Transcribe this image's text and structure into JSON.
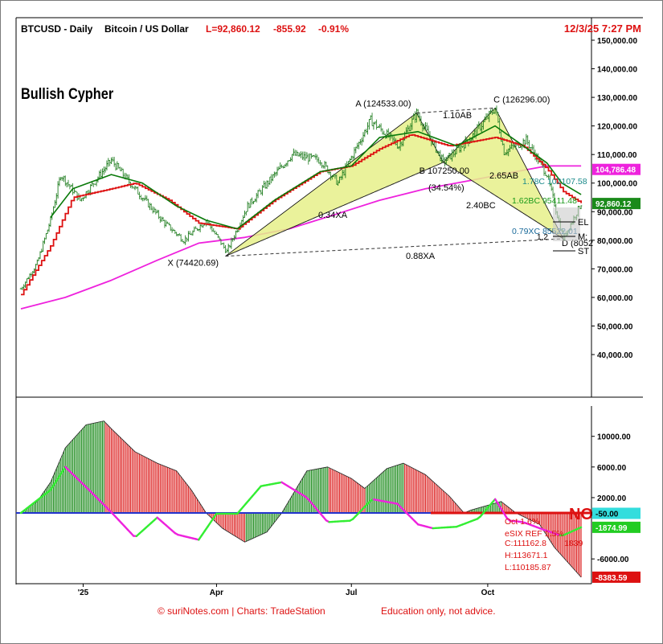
{
  "header": {
    "symbol": "BTCUSD - Daily",
    "name": "Bitcoin / US Dollar",
    "last": "L=92,860.12",
    "change": "-855.92",
    "pct": "-0.91%",
    "datetime": "12/3/25 7:27 PM"
  },
  "pattern_title": "Bullish Cypher",
  "footer": {
    "credit": "© suriNotes.com |  Charts: TradeStation",
    "disclaimer": "Education only, not advice."
  },
  "colors": {
    "up": "#1a7a1a",
    "down": "#cc1111",
    "sma_red": "#dd1111",
    "sma_green": "#0a7a0a",
    "sma_magenta": "#ee22dd",
    "triangle": "#e6f08a",
    "osc_line_green": "#33ee33",
    "osc_line_magenta": "#ee22dd",
    "zero_line": "#2233cc"
  },
  "chart_data": [
    {
      "type": "candlestick",
      "title": "BTCUSD - Daily  Bitcoin / US Dollar",
      "y_axis": {
        "range": [
          30000,
          155000
        ],
        "ticks": [
          40000,
          50000,
          60000,
          70000,
          80000,
          90000,
          100000,
          110000,
          120000,
          130000,
          140000,
          150000
        ],
        "tick_labels": [
          "40,000.00",
          "50,000.00",
          "60,000.00",
          "70,000.00",
          "80,000.00",
          "90,000.00",
          "100,000.00",
          "110,000.00",
          "120,000.00",
          "130,000.00",
          "140,000.00",
          "150,000.00"
        ]
      },
      "x_axis": {
        "range": [
          "2024-11-20",
          "2025-12-10"
        ],
        "ticks": [
          "2025-01-01",
          "2025-04-01",
          "2025-07-01",
          "2025-10-01"
        ],
        "tick_labels": [
          "'25",
          "Apr",
          "Jul",
          "Oct"
        ]
      },
      "price_path": [
        [
          "2024-11-20",
          63000
        ],
        [
          "2024-12-01",
          72000
        ],
        [
          "2024-12-10",
          87000
        ],
        [
          "2024-12-17",
          103000
        ],
        [
          "2024-12-30",
          94000
        ],
        [
          "2025-01-20",
          108000
        ],
        [
          "2025-02-05",
          98000
        ],
        [
          "2025-02-25",
          86000
        ],
        [
          "2025-03-10",
          80000
        ],
        [
          "2025-03-25",
          87000
        ],
        [
          "2025-04-08",
          76000
        ],
        [
          "2025-04-22",
          92000
        ],
        [
          "2025-05-22",
          110000
        ],
        [
          "2025-06-10",
          108000
        ],
        [
          "2025-06-22",
          100000
        ],
        [
          "2025-07-14",
          122000
        ],
        [
          "2025-08-02",
          113000
        ],
        [
          "2025-08-14",
          124533
        ],
        [
          "2025-09-01",
          107250
        ],
        [
          "2025-09-20",
          116000
        ],
        [
          "2025-10-06",
          126296
        ],
        [
          "2025-10-12",
          111000
        ],
        [
          "2025-10-27",
          115000
        ],
        [
          "2025-11-10",
          103000
        ],
        [
          "2025-11-21",
          80524
        ],
        [
          "2025-12-03",
          92860
        ]
      ],
      "moving_averages": [
        {
          "color": "red",
          "points": [
            [
              "2024-11-20",
              61000
            ],
            [
              "2024-12-10",
              78000
            ],
            [
              "2024-12-25",
              95000
            ],
            [
              "2025-01-20",
              98000
            ],
            [
              "2025-02-05",
              100000
            ],
            [
              "2025-02-28",
              94000
            ],
            [
              "2025-03-20",
              86000
            ],
            [
              "2025-04-15",
              84000
            ],
            [
              "2025-05-10",
              94000
            ],
            [
              "2025-06-10",
              104000
            ],
            [
              "2025-07-01",
              106000
            ],
            [
              "2025-07-20",
              112000
            ],
            [
              "2025-08-10",
              117000
            ],
            [
              "2025-09-05",
              113000
            ],
            [
              "2025-10-06",
              116000
            ],
            [
              "2025-10-25",
              113000
            ],
            [
              "2025-11-10",
              105000
            ],
            [
              "2025-11-21",
              97000
            ],
            [
              "2025-12-03",
              93000
            ]
          ]
        },
        {
          "color": "green",
          "points": [
            [
              "2024-12-10",
              88000
            ],
            [
              "2024-12-25",
              98000
            ],
            [
              "2025-01-20",
              103000
            ],
            [
              "2025-02-10",
              100000
            ],
            [
              "2025-03-05",
              92000
            ],
            [
              "2025-03-25",
              87000
            ],
            [
              "2025-04-15",
              84000
            ],
            [
              "2025-05-10",
              94000
            ],
            [
              "2025-06-10",
              104000
            ],
            [
              "2025-07-01",
              106000
            ],
            [
              "2025-07-20",
              116000
            ],
            [
              "2025-08-15",
              118000
            ],
            [
              "2025-09-10",
              113000
            ],
            [
              "2025-10-06",
              120000
            ],
            [
              "2025-10-25",
              113000
            ],
            [
              "2025-11-10",
              107000
            ],
            [
              "2025-11-20",
              100000
            ],
            [
              "2025-12-03",
              96000
            ]
          ]
        },
        {
          "color": "magenta",
          "points": [
            [
              "2024-11-20",
              56000
            ],
            [
              "2024-12-20",
              60000
            ],
            [
              "2025-01-20",
              66000
            ],
            [
              "2025-02-20",
              73000
            ],
            [
              "2025-03-20",
              79000
            ],
            [
              "2025-04-20",
              81000
            ],
            [
              "2025-05-20",
              84000
            ],
            [
              "2025-06-20",
              89000
            ],
            [
              "2025-07-20",
              94000
            ],
            [
              "2025-08-20",
              98000
            ],
            [
              "2025-09-20",
              101000
            ],
            [
              "2025-10-20",
              104000
            ],
            [
              "2025-11-10",
              106000
            ],
            [
              "2025-12-03",
              106000
            ]
          ]
        }
      ],
      "harmonic_pattern": {
        "name": "Bullish Cypher",
        "points": [
          {
            "id": "X",
            "date": "2025-04-07",
            "price": 74420.69,
            "label": "X (74420.69)"
          },
          {
            "id": "A",
            "date": "2025-08-14",
            "price": 124533.0,
            "label": "A (124533.00)"
          },
          {
            "id": "B",
            "date": "2025-09-01",
            "price": 107250.0,
            "label": "B 107250.00"
          },
          {
            "id": "C",
            "date": "2025-10-06",
            "price": 126296.0,
            "label": "C (126296.00)"
          },
          {
            "id": "D",
            "date": "2025-11-21",
            "price": 80524,
            "label": "D (8052"
          }
        ],
        "ratio_labels": [
          "1.10AB",
          "(34.54%)",
          "0.34XA",
          "2.40BC",
          "2.65AB",
          "0.88XA"
        ],
        "projection_labels": [
          "1.78C 102107.58",
          "1.62BC 95411.48",
          "0.79XC 85522.01",
          "1.2"
        ],
        "trade_labels": [
          "EL",
          "M:",
          "ST"
        ]
      },
      "price_tags": [
        {
          "value": 104786.48,
          "label": "104,786.48",
          "color": "#ee22dd"
        },
        {
          "value": 92860.12,
          "label": "92,860.12",
          "color": "#1a8a1a"
        }
      ]
    },
    {
      "type": "histogram",
      "y_axis": {
        "ticks": [
          -6000,
          2000,
          6000,
          10000
        ],
        "tick_labels": [
          "-6000.00",
          "2000.00",
          "6000.00",
          "10000.00"
        ]
      },
      "histogram_path": [
        [
          "2024-11-20",
          0
        ],
        [
          "2024-12-01",
          1500
        ],
        [
          "2024-12-10",
          4000
        ],
        [
          "2024-12-20",
          8500
        ],
        [
          "2025-01-03",
          11500
        ],
        [
          "2025-01-15",
          12000
        ],
        [
          "2025-01-20",
          11000
        ],
        [
          "2025-02-05",
          8000
        ],
        [
          "2025-02-20",
          6500
        ],
        [
          "2025-03-05",
          5500
        ],
        [
          "2025-03-15",
          3000
        ],
        [
          "2025-03-25",
          0
        ],
        [
          "2025-04-05",
          -2000
        ],
        [
          "2025-04-20",
          -3800
        ],
        [
          "2025-05-05",
          -2500
        ],
        [
          "2025-05-15",
          0
        ],
        [
          "2025-06-01",
          5500
        ],
        [
          "2025-06-15",
          6000
        ],
        [
          "2025-07-01",
          4500
        ],
        [
          "2025-07-10",
          3200
        ],
        [
          "2025-07-25",
          5800
        ],
        [
          "2025-08-05",
          6500
        ],
        [
          "2025-08-20",
          5000
        ],
        [
          "2025-09-05",
          2200
        ],
        [
          "2025-09-15",
          0
        ],
        [
          "2025-09-20",
          400
        ],
        [
          "2025-10-01",
          1000
        ],
        [
          "2025-10-10",
          1500
        ],
        [
          "2025-10-20",
          0
        ],
        [
          "2025-11-05",
          -1500
        ],
        [
          "2025-11-15",
          -4500
        ],
        [
          "2025-12-03",
          -8384
        ]
      ],
      "lines": [
        {
          "color": "green/magenta",
          "points": [
            [
              "2024-11-20",
              0
            ],
            [
              "2024-12-10",
              3000
            ],
            [
              "2024-12-20",
              6000
            ],
            [
              "2025-01-05",
              3000
            ],
            [
              "2025-01-20",
              100
            ],
            [
              "2025-02-05",
              -3200
            ],
            [
              "2025-02-20",
              -600
            ],
            [
              "2025-03-05",
              -2800
            ],
            [
              "2025-03-20",
              -3500
            ],
            [
              "2025-04-01",
              -100
            ],
            [
              "2025-04-15",
              -100
            ],
            [
              "2025-05-01",
              3500
            ],
            [
              "2025-05-15",
              4000
            ],
            [
              "2025-06-01",
              2000
            ],
            [
              "2025-06-15",
              -1200
            ],
            [
              "2025-07-01",
              -1000
            ],
            [
              "2025-07-15",
              1800
            ],
            [
              "2025-08-01",
              1200
            ],
            [
              "2025-08-15",
              -1500
            ],
            [
              "2025-08-25",
              -2000
            ],
            [
              "2025-09-10",
              -1800
            ],
            [
              "2025-09-25",
              -700
            ],
            [
              "2025-10-06",
              1800
            ],
            [
              "2025-10-15",
              -1000
            ],
            [
              "2025-10-25",
              -1200
            ],
            [
              "2025-11-05",
              -2000
            ],
            [
              "2025-11-20",
              -3000
            ],
            [
              "2025-12-03",
              -1875
            ]
          ]
        }
      ],
      "annotations": [
        "NO",
        "Oct 1.6%",
        "eSIX REF 1.5%",
        "C:111162.8",
        "1839",
        "H:113671.1",
        "L:110185.87"
      ],
      "value_tags": [
        {
          "value": -50.0,
          "label": "-50.00",
          "color": "#33dddd"
        },
        {
          "value": -1874.99,
          "label": "-1874.99",
          "color": "#22cc22"
        },
        {
          "value": -8383.59,
          "label": "-8383.59",
          "color": "#dd1111"
        }
      ]
    }
  ]
}
